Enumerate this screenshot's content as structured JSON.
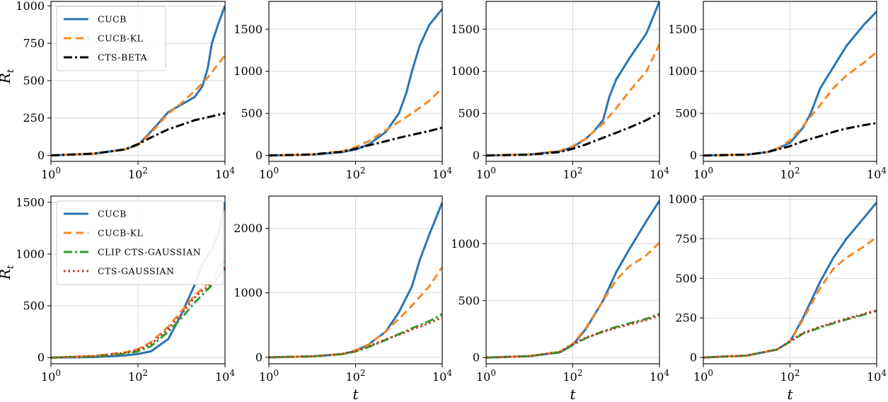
{
  "figure": {
    "ylabel": "R",
    "ylabel_sub": "t",
    "xlabel": "t"
  },
  "series_styles": {
    "CUCB": {
      "color": "#2b74b3",
      "dash": "",
      "width": 3
    },
    "CUCB-KL": {
      "color": "#f28a2a",
      "dash": "11,6",
      "width": 3
    },
    "CTS-BETA": {
      "color": "#000000",
      "dash": "12,4,3,4",
      "width": 3
    },
    "CLIP CTS-GAUSSIAN": {
      "color": "#2ca02c",
      "dash": "12,4,3,4",
      "width": 3
    },
    "CTS-GAUSSIAN": {
      "color": "#c4312c",
      "dash": "2.5,4",
      "width": 3
    }
  },
  "chart_data": [
    {
      "type": "line",
      "xscale": "log",
      "xlim": [
        1,
        10000
      ],
      "ylim": [
        -40,
        1030
      ],
      "yticks": [
        0,
        250,
        500,
        750,
        1000
      ],
      "xticks": [
        {
          "value": 1,
          "base": "10",
          "exp": "0"
        },
        {
          "value": 100,
          "base": "10",
          "exp": "2"
        },
        {
          "value": 10000,
          "base": "10",
          "exp": "4"
        }
      ],
      "grid": true,
      "legend": "upper-left",
      "show_ylabel": true,
      "show_xlabel": false,
      "series": [
        {
          "name": "CUCB",
          "x": [
            1,
            10,
            50,
            100,
            200,
            500,
            1000,
            2000,
            3000,
            4000,
            5000,
            7000,
            10000
          ],
          "y": [
            0,
            12,
            40,
            70,
            160,
            290,
            340,
            390,
            460,
            580,
            750,
            880,
            1000
          ]
        },
        {
          "name": "CUCB-KL",
          "x": [
            1,
            10,
            50,
            100,
            200,
            500,
            1000,
            2000,
            4000,
            10000
          ],
          "y": [
            0,
            12,
            40,
            70,
            150,
            280,
            350,
            430,
            520,
            670
          ]
        },
        {
          "name": "CTS-BETA",
          "x": [
            1,
            10,
            50,
            100,
            200,
            500,
            1000,
            2000,
            4000,
            10000
          ],
          "y": [
            0,
            12,
            40,
            75,
            120,
            175,
            205,
            235,
            255,
            282
          ]
        }
      ]
    },
    {
      "type": "line",
      "xscale": "log",
      "xlim": [
        1,
        10000
      ],
      "ylim": [
        -70,
        1830
      ],
      "yticks": [
        0,
        500,
        1000,
        1500
      ],
      "xticks": [
        {
          "value": 1,
          "base": "10",
          "exp": "0"
        },
        {
          "value": 100,
          "base": "10",
          "exp": "2"
        },
        {
          "value": 10000,
          "base": "10",
          "exp": "4"
        }
      ],
      "grid": true,
      "legend": "none",
      "show_ylabel": false,
      "show_xlabel": false,
      "series": [
        {
          "name": "CUCB",
          "x": [
            1,
            10,
            50,
            100,
            200,
            500,
            1000,
            1500,
            2000,
            3000,
            5000,
            10000
          ],
          "y": [
            0,
            10,
            40,
            70,
            130,
            280,
            500,
            750,
            1000,
            1300,
            1550,
            1740
          ]
        },
        {
          "name": "CUCB-KL",
          "x": [
            1,
            10,
            50,
            100,
            200,
            500,
            1000,
            2000,
            5000,
            10000
          ],
          "y": [
            0,
            12,
            50,
            100,
            170,
            300,
            400,
            500,
            650,
            800
          ]
        },
        {
          "name": "CTS-BETA",
          "x": [
            1,
            10,
            50,
            100,
            200,
            500,
            1000,
            2000,
            5000,
            10000
          ],
          "y": [
            0,
            12,
            45,
            80,
            120,
            170,
            210,
            245,
            290,
            330
          ]
        }
      ]
    },
    {
      "type": "line",
      "xscale": "log",
      "xlim": [
        1,
        10000
      ],
      "ylim": [
        -70,
        1830
      ],
      "yticks": [
        0,
        500,
        1000,
        1500
      ],
      "xticks": [
        {
          "value": 1,
          "base": "10",
          "exp": "0"
        },
        {
          "value": 100,
          "base": "10",
          "exp": "2"
        },
        {
          "value": 10000,
          "base": "10",
          "exp": "4"
        }
      ],
      "grid": true,
      "legend": "none",
      "show_ylabel": false,
      "show_xlabel": false,
      "series": [
        {
          "name": "CUCB",
          "x": [
            1,
            10,
            50,
            100,
            200,
            300,
            500,
            700,
            1000,
            2000,
            5000,
            10000
          ],
          "y": [
            0,
            12,
            50,
            100,
            200,
            280,
            420,
            700,
            900,
            1150,
            1450,
            1830
          ]
        },
        {
          "name": "CUCB-KL",
          "x": [
            1,
            10,
            50,
            100,
            200,
            500,
            1000,
            2000,
            5000,
            10000
          ],
          "y": [
            0,
            12,
            55,
            110,
            200,
            380,
            560,
            760,
            1000,
            1320
          ]
        },
        {
          "name": "CTS-BETA",
          "x": [
            1,
            10,
            50,
            100,
            200,
            500,
            1000,
            2000,
            5000,
            10000
          ],
          "y": [
            0,
            10,
            40,
            80,
            130,
            210,
            270,
            330,
            420,
            505
          ]
        }
      ]
    },
    {
      "type": "line",
      "xscale": "log",
      "xlim": [
        1,
        10000
      ],
      "ylim": [
        -70,
        1830
      ],
      "yticks": [
        0,
        500,
        1000,
        1500
      ],
      "xticks": [
        {
          "value": 1,
          "base": "10",
          "exp": "0"
        },
        {
          "value": 100,
          "base": "10",
          "exp": "2"
        },
        {
          "value": 10000,
          "base": "10",
          "exp": "4"
        }
      ],
      "grid": true,
      "legend": "none",
      "show_ylabel": false,
      "show_xlabel": false,
      "series": [
        {
          "name": "CUCB",
          "x": [
            1,
            10,
            30,
            50,
            100,
            200,
            300,
            500,
            1000,
            2000,
            5000,
            10000
          ],
          "y": [
            0,
            10,
            40,
            80,
            150,
            330,
            500,
            800,
            1050,
            1300,
            1550,
            1710
          ]
        },
        {
          "name": "CUCB-KL",
          "x": [
            1,
            10,
            30,
            50,
            100,
            200,
            500,
            1000,
            2000,
            5000,
            10000
          ],
          "y": [
            0,
            10,
            40,
            80,
            180,
            350,
            600,
            800,
            950,
            1100,
            1230
          ]
        },
        {
          "name": "CTS-BETA",
          "x": [
            1,
            10,
            30,
            50,
            100,
            200,
            500,
            1000,
            2000,
            5000,
            10000
          ],
          "y": [
            0,
            10,
            40,
            70,
            110,
            170,
            230,
            280,
            320,
            360,
            385
          ]
        }
      ]
    },
    {
      "type": "line",
      "xscale": "log",
      "xlim": [
        1,
        10000
      ],
      "ylim": [
        -60,
        1560
      ],
      "yticks": [
        0,
        500,
        1000,
        1500
      ],
      "xticks": [
        {
          "value": 1,
          "base": "10",
          "exp": "0"
        },
        {
          "value": 100,
          "base": "10",
          "exp": "2"
        },
        {
          "value": 10000,
          "base": "10",
          "exp": "4"
        }
      ],
      "grid": true,
      "legend": "upper-left",
      "show_ylabel": true,
      "show_xlabel": false,
      "series": [
        {
          "name": "CUCB",
          "x": [
            1,
            10,
            50,
            100,
            200,
            500,
            1000,
            2000,
            3000,
            5000,
            7000,
            10000
          ],
          "y": [
            0,
            5,
            20,
            35,
            60,
            180,
            420,
            700,
            900,
            1050,
            1200,
            1500
          ]
        },
        {
          "name": "CUCB-KL",
          "x": [
            1,
            10,
            50,
            100,
            200,
            500,
            1000,
            2000,
            5000,
            10000
          ],
          "y": [
            0,
            15,
            50,
            80,
            150,
            300,
            450,
            600,
            750,
            950
          ]
        },
        {
          "name": "CLIP CTS-GAUSSIAN",
          "x": [
            1,
            10,
            50,
            100,
            200,
            500,
            1000,
            2000,
            5000,
            10000
          ],
          "y": [
            0,
            10,
            35,
            60,
            110,
            250,
            380,
            530,
            700,
            860
          ]
        },
        {
          "name": "CTS-GAUSSIAN",
          "x": [
            1,
            10,
            50,
            100,
            200,
            500,
            1000,
            2000,
            5000,
            10000
          ],
          "y": [
            0,
            15,
            45,
            75,
            130,
            280,
            420,
            580,
            720,
            880
          ]
        }
      ]
    },
    {
      "type": "line",
      "xscale": "log",
      "xlim": [
        1,
        10000
      ],
      "ylim": [
        -100,
        2500
      ],
      "yticks": [
        0,
        1000,
        2000
      ],
      "xticks": [
        {
          "value": 1,
          "base": "10",
          "exp": "0"
        },
        {
          "value": 100,
          "base": "10",
          "exp": "2"
        },
        {
          "value": 10000,
          "base": "10",
          "exp": "4"
        }
      ],
      "grid": true,
      "legend": "none",
      "show_ylabel": false,
      "show_xlabel": true,
      "series": [
        {
          "name": "CUCB",
          "x": [
            1,
            10,
            50,
            100,
            200,
            500,
            1000,
            2000,
            3000,
            5000,
            10000
          ],
          "y": [
            0,
            15,
            50,
            100,
            200,
            400,
            700,
            1100,
            1500,
            1900,
            2400
          ]
        },
        {
          "name": "CUCB-KL",
          "x": [
            1,
            10,
            50,
            100,
            200,
            500,
            1000,
            2000,
            5000,
            10000
          ],
          "y": [
            0,
            15,
            50,
            110,
            200,
            400,
            600,
            800,
            1100,
            1400
          ]
        },
        {
          "name": "CLIP CTS-GAUSSIAN",
          "x": [
            1,
            10,
            50,
            100,
            200,
            500,
            1000,
            2000,
            5000,
            10000
          ],
          "y": [
            0,
            15,
            50,
            90,
            160,
            270,
            360,
            450,
            560,
            670
          ]
        },
        {
          "name": "CTS-GAUSSIAN",
          "x": [
            1,
            10,
            50,
            100,
            200,
            500,
            1000,
            2000,
            5000,
            10000
          ],
          "y": [
            0,
            15,
            55,
            100,
            170,
            280,
            350,
            430,
            530,
            620
          ]
        }
      ]
    },
    {
      "type": "line",
      "xscale": "log",
      "xlim": [
        1,
        10000
      ],
      "ylim": [
        -55,
        1420
      ],
      "yticks": [
        0,
        500,
        1000
      ],
      "xticks": [
        {
          "value": 1,
          "base": "10",
          "exp": "0"
        },
        {
          "value": 100,
          "base": "10",
          "exp": "2"
        },
        {
          "value": 10000,
          "base": "10",
          "exp": "4"
        }
      ],
      "grid": true,
      "legend": "none",
      "show_ylabel": false,
      "show_xlabel": true,
      "series": [
        {
          "name": "CUCB",
          "x": [
            1,
            10,
            50,
            100,
            200,
            500,
            1000,
            2000,
            5000,
            10000
          ],
          "y": [
            0,
            12,
            45,
            110,
            250,
            500,
            750,
            950,
            1200,
            1380
          ]
        },
        {
          "name": "CUCB-KL",
          "x": [
            1,
            10,
            50,
            100,
            200,
            500,
            1000,
            2000,
            5000,
            10000
          ],
          "y": [
            0,
            12,
            50,
            120,
            260,
            500,
            680,
            800,
            900,
            1010
          ]
        },
        {
          "name": "CLIP CTS-GAUSSIAN",
          "x": [
            1,
            10,
            50,
            100,
            200,
            500,
            1000,
            2000,
            5000,
            10000
          ],
          "y": [
            0,
            12,
            45,
            110,
            170,
            230,
            270,
            300,
            340,
            385
          ]
        },
        {
          "name": "CTS-GAUSSIAN",
          "x": [
            1,
            10,
            50,
            100,
            200,
            500,
            1000,
            2000,
            5000,
            10000
          ],
          "y": [
            0,
            12,
            50,
            120,
            175,
            225,
            260,
            290,
            330,
            370
          ]
        }
      ]
    },
    {
      "type": "line",
      "xscale": "log",
      "xlim": [
        1,
        10000
      ],
      "ylim": [
        -40,
        1020
      ],
      "yticks": [
        0,
        250,
        500,
        750,
        1000
      ],
      "xticks": [
        {
          "value": 1,
          "base": "10",
          "exp": "0"
        },
        {
          "value": 100,
          "base": "10",
          "exp": "2"
        },
        {
          "value": 10000,
          "base": "10",
          "exp": "4"
        }
      ],
      "grid": true,
      "legend": "none",
      "show_ylabel": false,
      "show_xlabel": true,
      "series": [
        {
          "name": "CUCB",
          "x": [
            1,
            10,
            50,
            100,
            200,
            500,
            1000,
            2000,
            5000,
            10000
          ],
          "y": [
            0,
            12,
            50,
            100,
            250,
            480,
            630,
            750,
            880,
            980
          ]
        },
        {
          "name": "CUCB-KL",
          "x": [
            1,
            10,
            50,
            100,
            200,
            500,
            1000,
            2000,
            5000,
            10000
          ],
          "y": [
            0,
            12,
            50,
            100,
            240,
            440,
            560,
            630,
            700,
            760
          ]
        },
        {
          "name": "CLIP CTS-GAUSSIAN",
          "x": [
            1,
            10,
            50,
            100,
            200,
            500,
            1000,
            2000,
            5000,
            10000
          ],
          "y": [
            0,
            12,
            50,
            100,
            150,
            190,
            215,
            240,
            270,
            295
          ]
        },
        {
          "name": "CTS-GAUSSIAN",
          "x": [
            1,
            10,
            50,
            100,
            200,
            500,
            1000,
            2000,
            5000,
            10000
          ],
          "y": [
            0,
            12,
            50,
            105,
            155,
            195,
            220,
            245,
            275,
            298
          ]
        }
      ]
    }
  ]
}
